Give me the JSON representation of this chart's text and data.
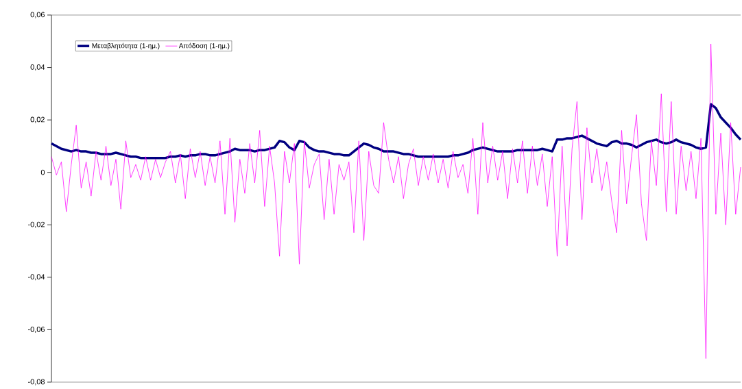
{
  "chart_data": {
    "type": "line",
    "categories": [
      null,
      null,
      null,
      null,
      null,
      null,
      null,
      null,
      null,
      null,
      null,
      null,
      null,
      null,
      null,
      null,
      null,
      null,
      null,
      null,
      null,
      null,
      null,
      null,
      null,
      null,
      null,
      null,
      null,
      null,
      null,
      null,
      null,
      null,
      null,
      null,
      null,
      null,
      null,
      null,
      null,
      null,
      null,
      null,
      null,
      null,
      null,
      null,
      null,
      null,
      null,
      null,
      null,
      null,
      null,
      null,
      null,
      null,
      null,
      null,
      null,
      null,
      null,
      null,
      null,
      null,
      null,
      null,
      null,
      null,
      null,
      null,
      null,
      null,
      null,
      null,
      null,
      null,
      null,
      null,
      null,
      null,
      null,
      null,
      null,
      null,
      null,
      null,
      null,
      null,
      null,
      null,
      null,
      null,
      null,
      null,
      null,
      null,
      null,
      null,
      null,
      null,
      null,
      null,
      null,
      null,
      null,
      null,
      null,
      null,
      null,
      null,
      null,
      null,
      null,
      null,
      null,
      null,
      null,
      null,
      null,
      null,
      null,
      null,
      null,
      null,
      null,
      null,
      null,
      null,
      null,
      null,
      null,
      null,
      null,
      null,
      null,
      null,
      null,
      null
    ],
    "series": [
      {
        "name": "Μεταβλητότητα (1-ημ.)",
        "color": "#000080",
        "values": [
          0.011,
          0.01,
          0.009,
          0.0085,
          0.008,
          0.0085,
          0.008,
          0.008,
          0.0075,
          0.0075,
          0.007,
          0.007,
          0.007,
          0.0075,
          0.007,
          0.0065,
          0.006,
          0.006,
          0.0055,
          0.0055,
          0.0055,
          0.0055,
          0.0055,
          0.0055,
          0.006,
          0.006,
          0.0065,
          0.006,
          0.0065,
          0.0065,
          0.007,
          0.007,
          0.0065,
          0.0065,
          0.007,
          0.0075,
          0.008,
          0.009,
          0.0085,
          0.0085,
          0.0085,
          0.008,
          0.0085,
          0.0085,
          0.009,
          0.0095,
          0.012,
          0.0115,
          0.0095,
          0.0085,
          0.012,
          0.0115,
          0.0095,
          0.0085,
          0.008,
          0.008,
          0.0075,
          0.007,
          0.007,
          0.0065,
          0.0065,
          0.008,
          0.0095,
          0.011,
          0.0105,
          0.0095,
          0.009,
          0.008,
          0.008,
          0.008,
          0.0075,
          0.007,
          0.007,
          0.0065,
          0.006,
          0.006,
          0.006,
          0.006,
          0.006,
          0.006,
          0.006,
          0.0065,
          0.0065,
          0.007,
          0.0075,
          0.0085,
          0.009,
          0.0095,
          0.009,
          0.0085,
          0.008,
          0.008,
          0.008,
          0.008,
          0.0085,
          0.0085,
          0.0085,
          0.0085,
          0.0085,
          0.009,
          0.0085,
          0.008,
          0.0125,
          0.0125,
          0.013,
          0.013,
          0.0135,
          0.014,
          0.013,
          0.012,
          0.011,
          0.0105,
          0.01,
          0.0115,
          0.012,
          0.011,
          0.011,
          0.0105,
          0.0095,
          0.0105,
          0.0115,
          0.012,
          0.0125,
          0.0115,
          0.011,
          0.0115,
          0.0125,
          0.0115,
          0.011,
          0.0105,
          0.0095,
          0.009,
          0.0095,
          0.026,
          0.0245,
          0.021,
          0.019,
          0.017,
          0.0145,
          0.0125
        ]
      },
      {
        "name": "Απόδοση (1-ημ.)",
        "color": "#ff00ff",
        "values": [
          0.006,
          -0.001,
          0.004,
          -0.015,
          0.003,
          0.018,
          -0.006,
          0.004,
          -0.009,
          0.008,
          -0.003,
          0.01,
          -0.005,
          0.005,
          -0.014,
          0.012,
          -0.002,
          0.003,
          -0.003,
          0.006,
          -0.003,
          0.005,
          -0.002,
          0.004,
          0.008,
          -0.004,
          0.007,
          -0.01,
          0.009,
          -0.002,
          0.008,
          -0.005,
          0.006,
          -0.004,
          0.012,
          -0.016,
          0.013,
          -0.019,
          0.005,
          -0.008,
          0.011,
          -0.004,
          0.016,
          -0.013,
          0.01,
          -0.004,
          -0.032,
          0.008,
          -0.004,
          0.011,
          -0.035,
          0.012,
          -0.006,
          0.003,
          0.007,
          -0.018,
          0.005,
          -0.016,
          0.003,
          -0.003,
          0.004,
          -0.023,
          0.012,
          -0.026,
          0.008,
          -0.005,
          -0.008,
          0.019,
          0.005,
          -0.004,
          0.006,
          -0.01,
          0.003,
          0.009,
          -0.005,
          0.006,
          -0.003,
          0.007,
          -0.004,
          0.005,
          -0.006,
          0.008,
          -0.002,
          0.003,
          -0.008,
          0.013,
          -0.016,
          0.019,
          -0.004,
          0.01,
          -0.003,
          0.008,
          -0.01,
          0.009,
          -0.004,
          0.012,
          -0.008,
          0.01,
          -0.005,
          0.007,
          -0.013,
          0.006,
          -0.032,
          0.01,
          -0.028,
          0.009,
          0.027,
          -0.018,
          0.017,
          -0.004,
          0.009,
          -0.007,
          0.004,
          -0.011,
          -0.023,
          0.016,
          -0.012,
          0.006,
          0.022,
          -0.012,
          -0.026,
          0.012,
          -0.005,
          0.03,
          -0.015,
          0.027,
          -0.016,
          0.01,
          -0.007,
          0.008,
          -0.01,
          0.013,
          -0.071,
          0.049,
          -0.016,
          0.015,
          -0.02,
          0.019,
          -0.016,
          0.002
        ]
      }
    ],
    "ylim": [
      -0.08,
      0.06
    ],
    "yticks": [
      {
        "value": -0.08,
        "label": "-0,08"
      },
      {
        "value": -0.06,
        "label": "-0,06"
      },
      {
        "value": -0.04,
        "label": "-0,04"
      },
      {
        "value": -0.02,
        "label": "-0,02"
      },
      0,
      {
        "value": 0.02,
        "label": "0,02"
      },
      {
        "value": 0.04,
        "label": "0,04"
      },
      {
        "value": 0.06,
        "label": "0,06"
      }
    ],
    "legend": "top left"
  }
}
